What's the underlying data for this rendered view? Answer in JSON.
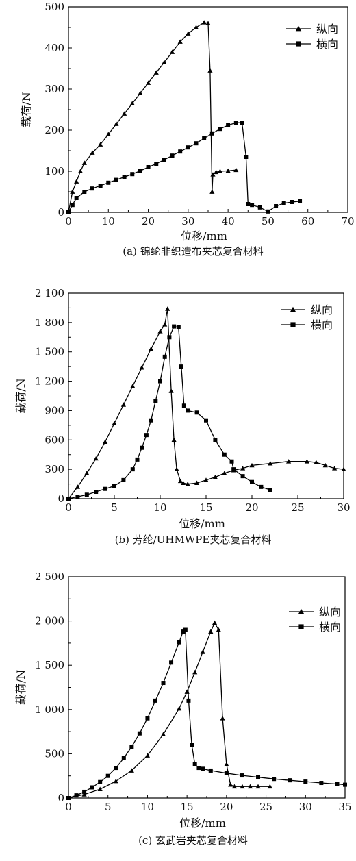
{
  "chart_data": [
    {
      "type": "line",
      "caption": "(a) 锦纶非织造布夹芯复合材料",
      "xlabel": "位移/mm",
      "ylabel": "载荷/N",
      "xlim": [
        0,
        70
      ],
      "ylim": [
        0,
        500
      ],
      "xticks": [
        0,
        10,
        20,
        30,
        40,
        50,
        60,
        70
      ],
      "yticks": [
        0,
        100,
        200,
        300,
        400,
        500
      ],
      "xtick_labels": [
        "0",
        "10",
        "20",
        "30",
        "40",
        "50",
        "60",
        "70"
      ],
      "ytick_labels": [
        "0",
        "100",
        "200",
        "300",
        "400",
        "500"
      ],
      "legend_position": "top-right",
      "grid": false,
      "series": [
        {
          "name": "纵向",
          "marker": "triangle",
          "x": [
            0,
            1,
            2,
            3,
            4,
            6,
            8,
            10,
            12,
            14,
            16,
            18,
            20,
            22,
            24,
            26,
            28,
            30,
            32,
            34,
            35,
            35.5,
            36,
            36.2,
            37,
            38,
            40,
            42
          ],
          "y": [
            0,
            50,
            75,
            100,
            120,
            145,
            165,
            190,
            215,
            240,
            265,
            290,
            315,
            340,
            365,
            390,
            415,
            435,
            450,
            462,
            460,
            345,
            50,
            92,
            98,
            100,
            101,
            103
          ]
        },
        {
          "name": "横向",
          "marker": "square",
          "x": [
            0,
            1,
            2,
            4,
            6,
            8,
            10,
            12,
            14,
            16,
            18,
            20,
            22,
            24,
            26,
            28,
            30,
            32,
            34,
            36,
            38,
            40,
            42,
            43.5,
            44.5,
            45,
            46,
            48,
            50,
            52,
            54,
            56,
            58
          ],
          "y": [
            0,
            18,
            35,
            50,
            58,
            65,
            72,
            79,
            86,
            93,
            101,
            110,
            118,
            128,
            138,
            148,
            158,
            168,
            180,
            192,
            203,
            212,
            218,
            218,
            135,
            20,
            18,
            12,
            2,
            15,
            22,
            25,
            27
          ]
        }
      ]
    },
    {
      "type": "line",
      "caption": "(b) 芳纶/UHMWPE夹芯复合材料",
      "xlabel": "位移/mm",
      "ylabel": "载荷/N",
      "xlim": [
        0,
        30
      ],
      "ylim": [
        0,
        2100
      ],
      "xticks": [
        0,
        5,
        10,
        15,
        20,
        25,
        30
      ],
      "yticks": [
        0,
        300,
        600,
        900,
        1200,
        1500,
        1800,
        2100
      ],
      "xtick_labels": [
        "0",
        "5",
        "10",
        "15",
        "20",
        "25",
        "30"
      ],
      "ytick_labels": [
        "0",
        "300",
        "600",
        "900",
        "1 200",
        "1 500",
        "1 800",
        "2 100"
      ],
      "legend_position": "top-right",
      "grid": false,
      "series": [
        {
          "name": "纵向",
          "marker": "triangle",
          "x": [
            0,
            1,
            2,
            3,
            4,
            5,
            6,
            7,
            8,
            9,
            10,
            10.5,
            10.8,
            11.2,
            11.5,
            11.8,
            12.2,
            12.5,
            13,
            14,
            15,
            16,
            17,
            18,
            19,
            20,
            22,
            24,
            26,
            27,
            28,
            29,
            30
          ],
          "y": [
            0,
            120,
            260,
            410,
            580,
            770,
            960,
            1150,
            1340,
            1530,
            1710,
            1780,
            1940,
            1100,
            600,
            300,
            180,
            160,
            150,
            160,
            190,
            220,
            260,
            290,
            310,
            340,
            360,
            380,
            380,
            370,
            340,
            310,
            300
          ]
        },
        {
          "name": "横向",
          "marker": "square",
          "x": [
            0,
            1,
            2,
            3,
            4,
            5,
            6,
            7,
            7.5,
            8,
            8.5,
            9,
            9.5,
            10,
            10.5,
            11,
            11.5,
            12,
            12.3,
            12.6,
            13,
            14,
            15,
            16,
            17,
            17.8,
            18,
            19,
            20,
            21,
            22
          ],
          "y": [
            0,
            20,
            40,
            70,
            100,
            130,
            190,
            300,
            400,
            520,
            650,
            800,
            1000,
            1200,
            1450,
            1650,
            1760,
            1750,
            1350,
            950,
            900,
            880,
            800,
            600,
            450,
            380,
            300,
            230,
            170,
            120,
            90
          ]
        }
      ]
    },
    {
      "type": "line",
      "caption": "(c) 玄武岩夹芯复合材料",
      "xlabel": "位移/mm",
      "ylabel": "载荷/N",
      "xlim": [
        0,
        35
      ],
      "ylim": [
        0,
        2500
      ],
      "xticks": [
        0,
        5,
        10,
        15,
        20,
        25,
        30,
        35
      ],
      "yticks": [
        0,
        500,
        1000,
        1500,
        2000,
        2500
      ],
      "xtick_labels": [
        "0",
        "5",
        "10",
        "15",
        "20",
        "25",
        "30",
        "35"
      ],
      "ytick_labels": [
        "0",
        "500",
        "1 000",
        "1 500",
        "2 000",
        "2 500"
      ],
      "legend_position": "top-right",
      "grid": false,
      "series": [
        {
          "name": "纵向",
          "marker": "triangle",
          "x": [
            0,
            2,
            4,
            6,
            8,
            10,
            12,
            14,
            15,
            16,
            17,
            18,
            18.5,
            19,
            19.5,
            20,
            20.5,
            21,
            22,
            23,
            24,
            25.5
          ],
          "y": [
            0,
            40,
            100,
            190,
            310,
            480,
            720,
            1010,
            1200,
            1420,
            1650,
            1880,
            1980,
            1900,
            900,
            380,
            150,
            130,
            130,
            130,
            130,
            130
          ]
        },
        {
          "name": "横向",
          "marker": "square",
          "x": [
            0,
            1,
            2,
            3,
            4,
            5,
            6,
            7,
            8,
            9,
            10,
            11,
            12,
            13,
            14,
            14.5,
            14.8,
            15.2,
            15.6,
            16,
            16.5,
            17,
            18,
            20,
            22,
            24,
            26,
            28,
            30,
            32,
            34,
            35
          ],
          "y": [
            0,
            30,
            70,
            120,
            180,
            250,
            340,
            450,
            580,
            730,
            900,
            1100,
            1300,
            1530,
            1760,
            1880,
            1900,
            1100,
            600,
            380,
            340,
            330,
            310,
            280,
            255,
            235,
            215,
            200,
            185,
            170,
            158,
            150
          ]
        }
      ]
    }
  ]
}
